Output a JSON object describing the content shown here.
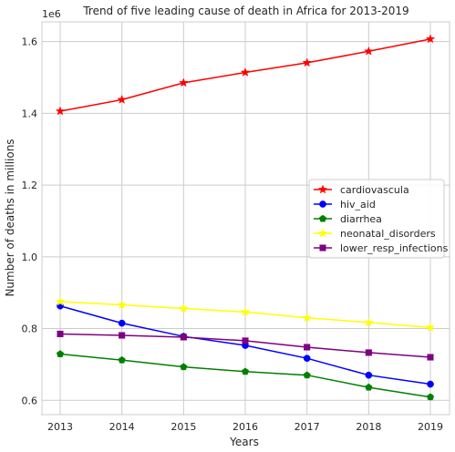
{
  "chart_data": {
    "type": "line",
    "title": "Trend of five leading cause of death in Africa for 2013-2019",
    "xlabel": "Years",
    "ylabel": "Number of deaths in millions",
    "y_offset_label": "1e6",
    "x": [
      2013,
      2014,
      2015,
      2016,
      2017,
      2018,
      2019
    ],
    "xticks": [
      "2013",
      "2014",
      "2015",
      "2016",
      "2017",
      "2018",
      "2019"
    ],
    "ylim": [
      0.56,
      1.655
    ],
    "yticks": [
      0.6,
      0.8,
      1.0,
      1.2,
      1.4,
      1.6
    ],
    "ytick_labels": [
      "0.6",
      "0.8",
      "1.0",
      "1.2",
      "1.4",
      "1.6"
    ],
    "grid": true,
    "legend_position": "center-right",
    "series": [
      {
        "name": "cardiovascula",
        "color": "#ff0000",
        "marker": "star",
        "values": [
          1.406,
          1.438,
          1.485,
          1.514,
          1.541,
          1.573,
          1.607
        ]
      },
      {
        "name": "hiv_aid",
        "color": "#0000ff",
        "marker": "circle",
        "values": [
          0.863,
          0.815,
          0.778,
          0.753,
          0.717,
          0.67,
          0.645
        ]
      },
      {
        "name": "diarrhea",
        "color": "#008000",
        "marker": "pentagon",
        "values": [
          0.729,
          0.712,
          0.693,
          0.68,
          0.67,
          0.636,
          0.609
        ]
      },
      {
        "name": "neonatal_disorders",
        "color": "#ffff00",
        "marker": "star",
        "values": [
          0.875,
          0.866,
          0.856,
          0.846,
          0.83,
          0.817,
          0.803
        ]
      },
      {
        "name": "lower_resp_infections",
        "color": "#800080",
        "marker": "square",
        "values": [
          0.785,
          0.781,
          0.776,
          0.766,
          0.748,
          0.733,
          0.72
        ]
      }
    ]
  }
}
